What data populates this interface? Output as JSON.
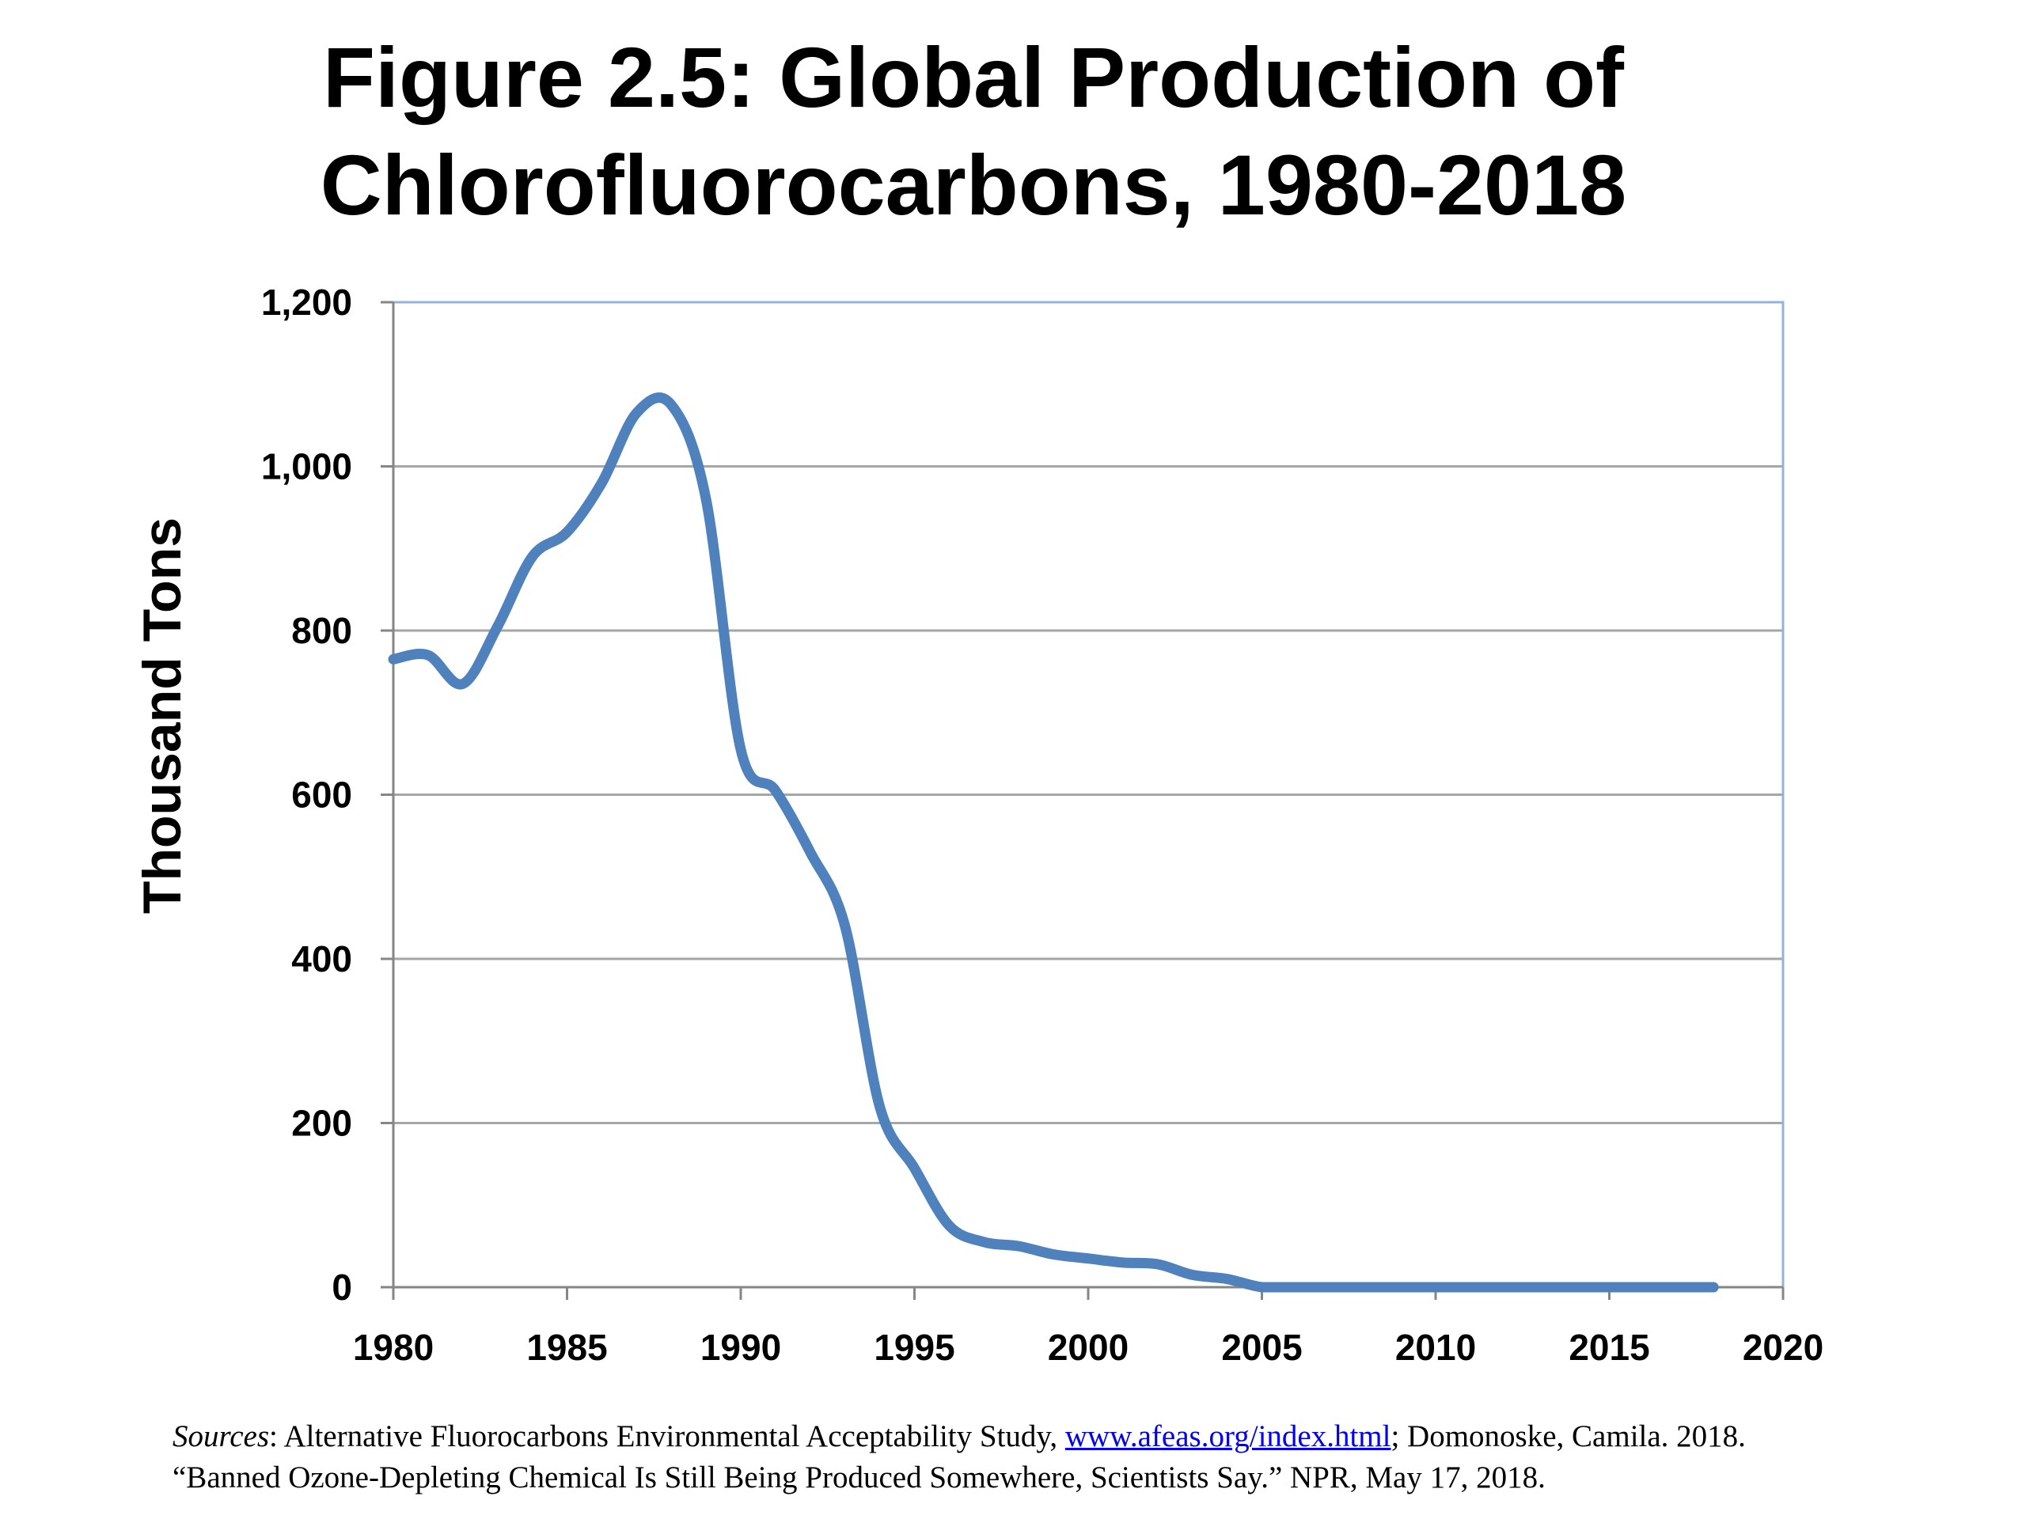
{
  "title_line1": "Figure 2.5: Global Production of",
  "title_line2": "Chlorofluorocarbons, 1980-2018",
  "sources": {
    "label": "Sources",
    "text1": ": Alternative Fluorocarbons Environmental Acceptability Study, ",
    "link": "www.afeas.org/index.html",
    "text2": "; Domonoske, Camila. 2018.",
    "line2": "“Banned Ozone-Depleting Chemical Is Still Being Produced Somewhere, Scientists Say.” NPR, May 17, 2018."
  },
  "colors": {
    "line": "#4f81bd",
    "grid": "#a6a6a6",
    "plot_border": "#95b3d7",
    "axis": "#868686"
  },
  "chart_data": {
    "type": "line",
    "title": "Figure 2.5: Global Production of Chlorofluorocarbons, 1980-2018",
    "xlabel": "",
    "ylabel": "Thousand Tons",
    "xlim": [
      1980,
      2020
    ],
    "ylim": [
      0,
      1200
    ],
    "xticks": [
      1980,
      1985,
      1990,
      1995,
      2000,
      2005,
      2010,
      2015,
      2020
    ],
    "xtick_labels": [
      "1980",
      "1985",
      "1990",
      "1995",
      "2000",
      "2005",
      "2010",
      "2015",
      "2020"
    ],
    "yticks": [
      0,
      200,
      400,
      600,
      800,
      1000,
      1200
    ],
    "ytick_labels": [
      "0",
      "200",
      "400",
      "600",
      "800",
      "1,000",
      "1,200"
    ],
    "grid": true,
    "legend": "none",
    "x": [
      1980,
      1981,
      1982,
      1983,
      1984,
      1985,
      1986,
      1987,
      1988,
      1989,
      1990,
      1991,
      1992,
      1993,
      1994,
      1995,
      1996,
      1997,
      1998,
      1999,
      2000,
      2001,
      2002,
      2003,
      2004,
      2005,
      2006,
      2007,
      2008,
      2009,
      2010,
      2011,
      2012,
      2013,
      2014,
      2015,
      2016,
      2017,
      2018
    ],
    "values": [
      765,
      770,
      735,
      805,
      890,
      920,
      980,
      1065,
      1075,
      960,
      655,
      605,
      530,
      440,
      220,
      145,
      75,
      55,
      50,
      40,
      35,
      30,
      28,
      15,
      10,
      0,
      0,
      0,
      0,
      0,
      0,
      0,
      0,
      0,
      0,
      0,
      0,
      0,
      0
    ]
  }
}
